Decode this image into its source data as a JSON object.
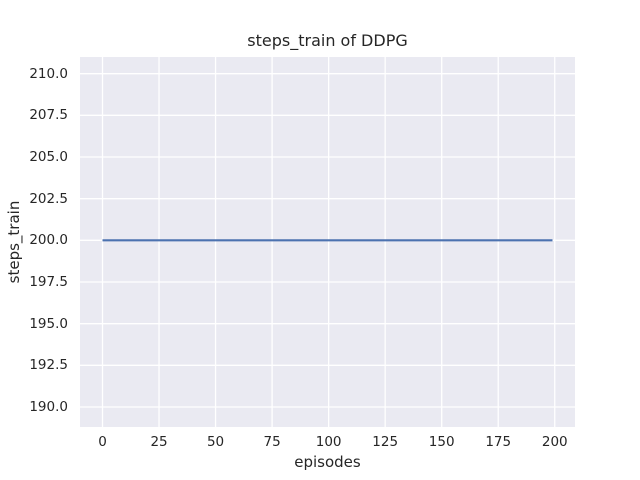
{
  "figure": {
    "title": "steps_train of DDPG",
    "xlabel": "episodes",
    "ylabel": "steps_train"
  },
  "chart_data": {
    "type": "line",
    "title": "steps_train of DDPG",
    "xlabel": "episodes",
    "ylabel": "steps_train",
    "xlim": [
      -9.95,
      208.95
    ],
    "ylim": [
      188.8,
      211.0
    ],
    "grid": true,
    "legend": null,
    "x_ticks": {
      "values": [
        0,
        25,
        50,
        75,
        100,
        125,
        150,
        175,
        200
      ],
      "labels": [
        "0",
        "25",
        "50",
        "75",
        "100",
        "125",
        "150",
        "175",
        "200"
      ]
    },
    "y_ticks": {
      "values": [
        190.0,
        192.5,
        195.0,
        197.5,
        200.0,
        202.5,
        205.0,
        207.5,
        210.0
      ],
      "labels": [
        "190.0",
        "192.5",
        "195.0",
        "197.5",
        "200.0",
        "202.5",
        "205.0",
        "207.5",
        "210.0"
      ]
    },
    "series": [
      {
        "name": "steps_train",
        "color": "#4c72b0",
        "x": [
          0,
          199
        ],
        "y": [
          200,
          200
        ],
        "note": "constant value 200 for every episode from 0 to 199"
      }
    ]
  },
  "style": {
    "figure_bg": "#ffffff",
    "plot_bg": "#eaeaf2",
    "grid_color": "#ffffff",
    "line_color": "#4c72b0",
    "text_color": "#262626"
  }
}
